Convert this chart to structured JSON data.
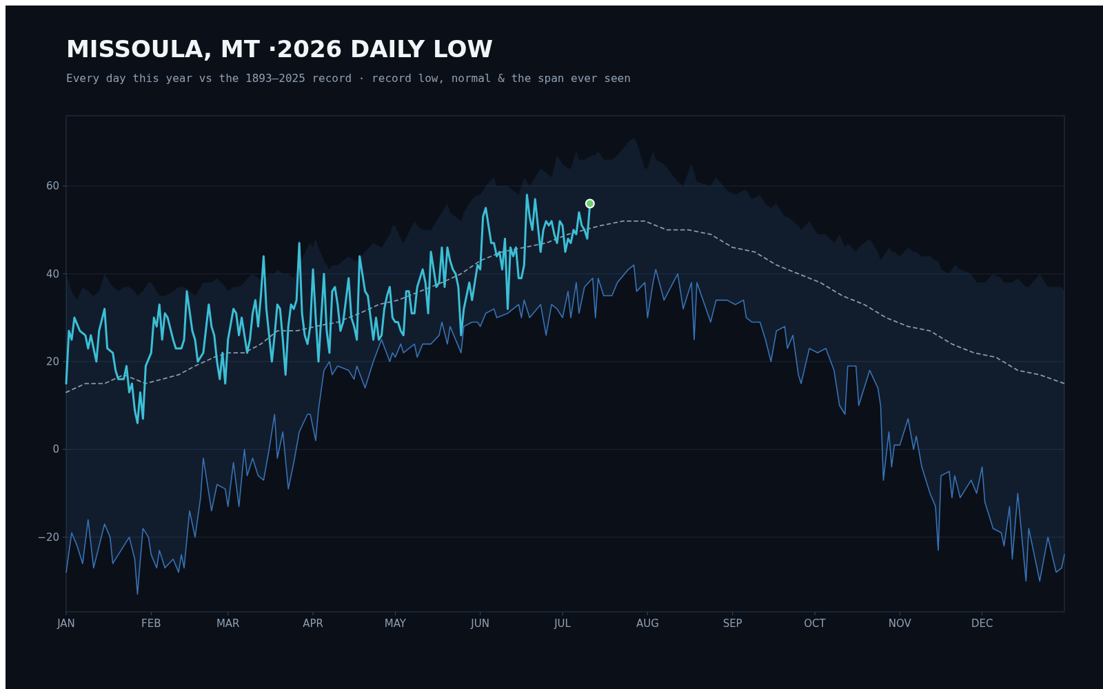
{
  "chart_data": {
    "type": "line",
    "title": "MISSOULA, MT ·2026 DAILY LOW",
    "subtitle": "Every day this year vs the 1893–2025 record · record low, normal & the span ever seen",
    "xlim": [
      "--01-01",
      "--12-31"
    ],
    "ylim": [
      -37,
      76
    ],
    "xticks": [
      {
        "value": "--01-01",
        "label": "JAN"
      },
      {
        "value": "--02-01",
        "label": "FEB"
      },
      {
        "value": "--03-01",
        "label": "MAR"
      },
      {
        "value": "--04-01",
        "label": "APR"
      },
      {
        "value": "--05-01",
        "label": "MAY"
      },
      {
        "value": "--06-01",
        "label": "JUN"
      },
      {
        "value": "--07-01",
        "label": "JUL"
      },
      {
        "value": "--08-01",
        "label": "AUG"
      },
      {
        "value": "--09-01",
        "label": "SEP"
      },
      {
        "value": "--10-01",
        "label": "OCT"
      },
      {
        "value": "--11-01",
        "label": "NOV"
      },
      {
        "value": "--12-01",
        "label": "DEC"
      }
    ],
    "yticks": [
      {
        "value": -20,
        "label": "−20"
      },
      0,
      20,
      40,
      60
    ],
    "grid": "y",
    "series": [
      {
        "type": "line",
        "color": "#3a78c0",
        "x": [
          "--01-01",
          "--01-03",
          "--01-05",
          "--01-07",
          "--01-09",
          "--01-11",
          "--01-13",
          "--01-15",
          "--01-17",
          "--01-18",
          "--01-20",
          "--01-22",
          "--01-24",
          "--01-26",
          "--01-27",
          "--01-29",
          "--01-31",
          "--02-01",
          "--02-03",
          "--02-04",
          "--02-06",
          "--02-09",
          "--02-11",
          "--02-12",
          "--02-13",
          "--02-15",
          "--02-17",
          "--02-19",
          "--02-20",
          "--02-23",
          "--02-25",
          "--02-28",
          "--03-01",
          "--03-03",
          "--03-05",
          "--03-07",
          "--03-08",
          "--03-10",
          "--03-12",
          "--03-14",
          "--03-16",
          "--03-18",
          "--03-19",
          "--03-21",
          "--03-23",
          "--03-25",
          "--03-27",
          "--03-30",
          "--03-31",
          "--04-01",
          "--04-02",
          "--04-03",
          "--04-05",
          "--04-07",
          "--04-08",
          "--04-10",
          "--04-14",
          "--04-16",
          "--04-17",
          "--04-20",
          "--04-23",
          "--04-26",
          "--04-29",
          "--04-30",
          "--05-01",
          "--05-03",
          "--05-04",
          "--05-08",
          "--05-09",
          "--05-11",
          "--05-14",
          "--05-17",
          "--05-18",
          "--05-20",
          "--05-21",
          "--05-25",
          "--05-26",
          "--05-29",
          "--05-31",
          "--06-01",
          "--06-03",
          "--06-06",
          "--06-07",
          "--06-11",
          "--06-15",
          "--06-16",
          "--06-17",
          "--06-19",
          "--06-23",
          "--06-25",
          "--06-27",
          "--06-29",
          "--07-01",
          "--07-03",
          "--07-04",
          "--07-06",
          "--07-07",
          "--07-09",
          "--07-12",
          "--07-13",
          "--07-14",
          "--07-16",
          "--07-19",
          "--07-21",
          "--07-25",
          "--07-27",
          "--07-28",
          "--07-31",
          "--08-01",
          "--08-03",
          "--08-04",
          "--08-07",
          "--08-12",
          "--08-14",
          "--08-17",
          "--08-18",
          "--08-19",
          "--08-24",
          "--08-26",
          "--08-30",
          "--09-02",
          "--09-05",
          "--09-06",
          "--09-08",
          "--09-11",
          "--09-13",
          "--09-15",
          "--09-17",
          "--09-20",
          "--09-21",
          "--09-23",
          "--09-25",
          "--09-26",
          "--09-29",
          "--10-02",
          "--10-05",
          "--10-08",
          "--10-10",
          "--10-12",
          "--10-13",
          "--10-16",
          "--10-17",
          "--10-21",
          "--10-24",
          "--10-25",
          "--10-26",
          "--10-28",
          "--10-29",
          "--10-30",
          "--11-01",
          "--11-04",
          "--11-06",
          "--11-07",
          "--11-09",
          "--11-12",
          "--11-14",
          "--11-15",
          "--11-16",
          "--11-19",
          "--11-20",
          "--11-21",
          "--11-23",
          "--11-27",
          "--11-29",
          "--12-01",
          "--12-02",
          "--12-05",
          "--12-08",
          "--12-09",
          "--12-11",
          "--12-12",
          "--12-14",
          "--12-17",
          "--12-18",
          "--12-22",
          "--12-25",
          "--12-28",
          "--12-30",
          "--12-31"
        ],
        "values": [
          -28,
          -19,
          -22,
          -26,
          -16,
          -27,
          -22,
          -17,
          -20,
          -26,
          -24,
          -22,
          -20,
          -25,
          -33,
          -18,
          -20,
          -24,
          -27,
          -23,
          -27,
          -25,
          -28,
          -24,
          -27,
          -14,
          -20,
          -11,
          -2,
          -14,
          -8,
          -9,
          -13,
          -3,
          -13,
          0,
          -6,
          -2,
          -6,
          -7,
          0,
          8,
          -2,
          4,
          -9,
          -3,
          4,
          8,
          8,
          5,
          2,
          9,
          18,
          20,
          17,
          19,
          18,
          16,
          19,
          14,
          20,
          25,
          20,
          22,
          21,
          24,
          22,
          24,
          21,
          24,
          24,
          26,
          29,
          24,
          28,
          22,
          28,
          29,
          29,
          28,
          31,
          32,
          30,
          31,
          33,
          30,
          34,
          30,
          33,
          26,
          33,
          32,
          30,
          36,
          30,
          38,
          31,
          37,
          39,
          30,
          39,
          35,
          35,
          38,
          41,
          42,
          36,
          38,
          30,
          38,
          41,
          34,
          40,
          32,
          38,
          25,
          38,
          29,
          34,
          34,
          33,
          34,
          30,
          29,
          29,
          25,
          20,
          27,
          28,
          23,
          26,
          17,
          15,
          23,
          22,
          23,
          18,
          10,
          8,
          19,
          19,
          10,
          18,
          14,
          10,
          -7,
          4,
          -4,
          1,
          1,
          7,
          0,
          3,
          -4,
          -10,
          -13,
          -23,
          -6,
          -5,
          -11,
          -6,
          -11,
          -7,
          -10,
          -4,
          -12,
          -18,
          -19,
          -22,
          -13,
          -25,
          -10,
          -30,
          -18,
          -30,
          -20,
          -28,
          -27,
          -24
        ],
        "lower": [
          -28,
          -19,
          -22,
          -26,
          -16,
          -27,
          -22,
          -17,
          -20,
          -26,
          -24,
          -22,
          -20,
          -25,
          -33,
          -18,
          -20,
          -24,
          -27,
          -23,
          -27,
          -25,
          -28,
          -24,
          -27,
          -14,
          -20,
          -11,
          -2,
          -14,
          -8,
          -9,
          -13,
          -3,
          -13,
          0,
          -6,
          -2,
          -6,
          -7,
          0,
          8,
          -2,
          4,
          -9,
          -3,
          4,
          8,
          8,
          5,
          2,
          9,
          18,
          20,
          17,
          19,
          18,
          16,
          19,
          14,
          20,
          25,
          20,
          22,
          21,
          24,
          22,
          24,
          21,
          24,
          24,
          26,
          29,
          24,
          28,
          22,
          28,
          29,
          29,
          28,
          31,
          32,
          30,
          31,
          33,
          30,
          34,
          30,
          33,
          26,
          33,
          32,
          30,
          36,
          30,
          38,
          31,
          37,
          39,
          30,
          39,
          35,
          35,
          38,
          41,
          42,
          36,
          38,
          30,
          38,
          41,
          34,
          40,
          32,
          38,
          25,
          38,
          29,
          34,
          34,
          33,
          34,
          30,
          29,
          29,
          25,
          20,
          27,
          28,
          23,
          26,
          17,
          15,
          23,
          22,
          23,
          18,
          10,
          8,
          19,
          19,
          10,
          18,
          14,
          10,
          -7,
          4,
          -4,
          1,
          1,
          7,
          0,
          3,
          -4,
          -10,
          -13,
          -23,
          -6,
          -5,
          -11,
          -6,
          -11,
          -7,
          -10,
          -4,
          -12,
          -18,
          -19,
          -22,
          -13,
          -25,
          -10,
          -30,
          -18,
          -30,
          -20,
          -28,
          -27,
          -24
        ],
        "upper": [
          40,
          36,
          34,
          37,
          36,
          35,
          36,
          40,
          38,
          37,
          36,
          37,
          37,
          36,
          35,
          36,
          38,
          38,
          36,
          35,
          35,
          36,
          37,
          37,
          37,
          36,
          35,
          37,
          38,
          38,
          39,
          37,
          36,
          37,
          37,
          38,
          39,
          40,
          39,
          38,
          40,
          40,
          41,
          40,
          40,
          39,
          42,
          46,
          47,
          46,
          48,
          46,
          43,
          41,
          42,
          42,
          44,
          43,
          43,
          45,
          47,
          46,
          49,
          51,
          51,
          48,
          47,
          52,
          51,
          50,
          50,
          53,
          54,
          56,
          54,
          52,
          54,
          57,
          58,
          58,
          60,
          62,
          60,
          60,
          58,
          60,
          62,
          60,
          64,
          63,
          62,
          67,
          65,
          64,
          64,
          68,
          66,
          66,
          67,
          67,
          68,
          66,
          66,
          67,
          70,
          71,
          70,
          64,
          64,
          68,
          66,
          65,
          61,
          60,
          65,
          63,
          61,
          60,
          62,
          59,
          58,
          59,
          59,
          57,
          58,
          56,
          55,
          56,
          53,
          53,
          52,
          51,
          50,
          52,
          49,
          49,
          47,
          49,
          46,
          47,
          45,
          46,
          48,
          45,
          43,
          44,
          46,
          45,
          45,
          44,
          46,
          45,
          45,
          44,
          44,
          43,
          43,
          41,
          40,
          41,
          42,
          41,
          40,
          38,
          38,
          38,
          40,
          39,
          38,
          38,
          38,
          39,
          37,
          37,
          40,
          37,
          37,
          37,
          36
        ]
      },
      {
        "type": "line",
        "color": "#8a9bb0",
        "line_style": "dashed",
        "x": [
          "--01-01",
          "--01-08",
          "--01-15",
          "--01-22",
          "--01-30",
          "--02-05",
          "--02-11",
          "--02-17",
          "--02-24",
          "--03-01",
          "--03-07",
          "--03-13",
          "--03-19",
          "--03-26",
          "--04-02",
          "--04-10",
          "--04-18",
          "--04-25",
          "--05-02",
          "--05-10",
          "--05-18",
          "--05-25",
          "--06-01",
          "--06-09",
          "--06-17",
          "--06-25",
          "--07-03",
          "--07-09",
          "--07-15",
          "--07-23",
          "--07-31",
          "--08-08",
          "--08-16",
          "--08-24",
          "--09-01",
          "--09-09",
          "--09-17",
          "--09-25",
          "--10-03",
          "--10-11",
          "--10-19",
          "--10-27",
          "--11-04",
          "--11-12",
          "--11-20",
          "--11-28",
          "--12-06",
          "--12-14",
          "--12-22",
          "--12-31"
        ],
        "values": [
          13,
          15,
          15,
          17,
          15,
          16,
          17,
          19,
          21,
          22,
          22,
          24,
          27,
          27,
          28,
          29,
          31,
          33,
          34,
          36,
          38,
          40,
          43,
          45,
          46,
          47,
          49,
          50,
          51,
          52,
          52,
          50,
          50,
          49,
          46,
          45,
          42,
          40,
          38,
          35,
          33,
          30,
          28,
          27,
          24,
          22,
          21,
          18,
          17,
          15
        ]
      },
      {
        "type": "line",
        "color": "#3cbfd6",
        "x": [
          "--01-01",
          "--01-02",
          "--01-03",
          "--01-04",
          "--01-06",
          "--01-08",
          "--01-09",
          "--01-10",
          "--01-12",
          "--01-13",
          "--01-15",
          "--01-16",
          "--01-18",
          "--01-19",
          "--01-20",
          "--01-22",
          "--01-23",
          "--01-24",
          "--01-25",
          "--01-26",
          "--01-27",
          "--01-28",
          "--01-29",
          "--01-30",
          "--02-01",
          "--02-02",
          "--02-03",
          "--02-04",
          "--02-05",
          "--02-06",
          "--02-07",
          "--02-09",
          "--02-10",
          "--02-12",
          "--02-13",
          "--02-14",
          "--02-16",
          "--02-17",
          "--02-18",
          "--02-20",
          "--02-22",
          "--02-23",
          "--02-24",
          "--02-25",
          "--02-26",
          "--02-27",
          "--02-28",
          "--03-01",
          "--03-03",
          "--03-04",
          "--03-05",
          "--03-06",
          "--03-08",
          "--03-09",
          "--03-10",
          "--03-11",
          "--03-12",
          "--03-13",
          "--03-14",
          "--03-15",
          "--03-16",
          "--03-17",
          "--03-18",
          "--03-19",
          "--03-20",
          "--03-21",
          "--03-22",
          "--03-23",
          "--03-24",
          "--03-25",
          "--03-26",
          "--03-27",
          "--03-28",
          "--03-29",
          "--03-30",
          "--03-31",
          "--04-01",
          "--04-02",
          "--04-03",
          "--04-04",
          "--04-05",
          "--04-06",
          "--04-07",
          "--04-08",
          "--04-09",
          "--04-10",
          "--04-11",
          "--04-12",
          "--04-14",
          "--04-15",
          "--04-16",
          "--04-17",
          "--04-18",
          "--04-19",
          "--04-20",
          "--04-21",
          "--04-22",
          "--04-23",
          "--04-24",
          "--04-25",
          "--04-26",
          "--04-27",
          "--04-28",
          "--04-29",
          "--04-30",
          "--05-01",
          "--05-02",
          "--05-03",
          "--05-04",
          "--05-05",
          "--05-06",
          "--05-07",
          "--05-08",
          "--05-09",
          "--05-10",
          "--05-11",
          "--05-12",
          "--05-13",
          "--05-14",
          "--05-15",
          "--05-16",
          "--05-17",
          "--05-18",
          "--05-19",
          "--05-20",
          "--05-21",
          "--05-22",
          "--05-23",
          "--05-24",
          "--05-25",
          "--05-26",
          "--05-28",
          "--05-29",
          "--05-30",
          "--05-31",
          "--06-01",
          "--06-02",
          "--06-03",
          "--06-04",
          "--06-05",
          "--06-06",
          "--06-07",
          "--06-08",
          "--06-09",
          "--06-10",
          "--06-11",
          "--06-12",
          "--06-13",
          "--06-14",
          "--06-15",
          "--06-16",
          "--06-17",
          "--06-18",
          "--06-19",
          "--06-20",
          "--06-21",
          "--06-22",
          "--06-23",
          "--06-24",
          "--06-25",
          "--06-26",
          "--06-27",
          "--06-28",
          "--06-29",
          "--06-30",
          "--07-01",
          "--07-02",
          "--07-03",
          "--07-04",
          "--07-05",
          "--07-06",
          "--07-07",
          "--07-08",
          "--07-09",
          "--07-10",
          "--07-11"
        ],
        "values": [
          15,
          27,
          25,
          30,
          27,
          26,
          23,
          26,
          20,
          27,
          32,
          23,
          22,
          18,
          16,
          16,
          19,
          13,
          15,
          9,
          6,
          13,
          7,
          19,
          22,
          30,
          28,
          33,
          25,
          31,
          30,
          25,
          23,
          23,
          25,
          36,
          27,
          25,
          20,
          22,
          33,
          28,
          26,
          20,
          16,
          22,
          15,
          25,
          32,
          31,
          26,
          30,
          22,
          25,
          31,
          34,
          28,
          35,
          44,
          32,
          26,
          20,
          26,
          33,
          32,
          25,
          17,
          28,
          33,
          32,
          34,
          47,
          31,
          26,
          24,
          28,
          41,
          30,
          20,
          30,
          40,
          27,
          22,
          36,
          37,
          33,
          27,
          29,
          39,
          30,
          28,
          25,
          44,
          40,
          36,
          35,
          30,
          25,
          30,
          25,
          26,
          32,
          35,
          37,
          30,
          29,
          29,
          27,
          26,
          36,
          36,
          31,
          31,
          37,
          39,
          41,
          38,
          31,
          45,
          41,
          37,
          38,
          46,
          37,
          46,
          43,
          41,
          40,
          37,
          26,
          32,
          38,
          34,
          38,
          42,
          41,
          53,
          55,
          51,
          47,
          47,
          44,
          45,
          41,
          48,
          32,
          46,
          44,
          46,
          39,
          39,
          42,
          58,
          53,
          50,
          57,
          51,
          45,
          50,
          52,
          51,
          52,
          49,
          47,
          52,
          51,
          45,
          48,
          47,
          50,
          49,
          54,
          51,
          50,
          48,
          56
        ]
      },
      {
        "type": "scatter",
        "color": "#6cd06a",
        "marker": "circle",
        "x": [
          "--07-11"
        ],
        "values": [
          56
        ]
      }
    ]
  }
}
